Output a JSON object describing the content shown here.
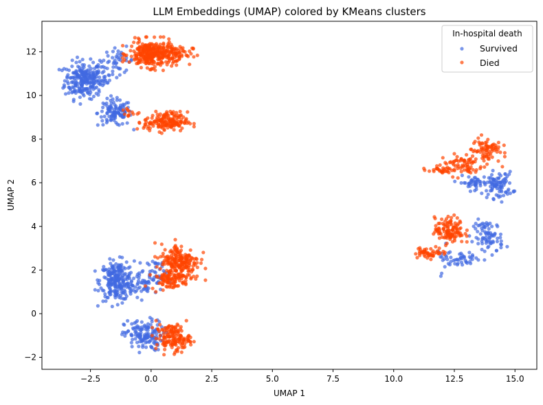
{
  "chart_data": {
    "type": "scatter",
    "title": "LLM Embeddings (UMAP) colored by KMeans clusters",
    "xlabel": "UMAP 1",
    "ylabel": "UMAP 2",
    "xlim": [
      -4.5,
      15.9
    ],
    "ylim": [
      -2.55,
      13.4
    ],
    "xticks": [
      -2.5,
      0.0,
      2.5,
      5.0,
      7.5,
      10.0,
      12.5,
      15.0
    ],
    "xtick_labels": [
      "−2.5",
      "0.0",
      "2.5",
      "5.0",
      "7.5",
      "10.0",
      "12.5",
      "15.0"
    ],
    "yticks": [
      -2,
      0,
      2,
      4,
      6,
      8,
      10,
      12
    ],
    "ytick_labels": [
      "−2",
      "0",
      "2",
      "4",
      "6",
      "8",
      "10",
      "12"
    ],
    "grid": false,
    "legend": {
      "title": "In-hospital death",
      "placement": "top-right"
    },
    "series": [
      {
        "name": "Survived",
        "color": "#4169E1",
        "clusters": [
          {
            "cx": -2.8,
            "cy": 10.7,
            "sx": 0.38,
            "sy": 0.42,
            "n": 230
          },
          {
            "cx": -2.0,
            "cy": 11.0,
            "sx": 0.25,
            "sy": 0.35,
            "n": 40
          },
          {
            "cx": -1.3,
            "cy": 11.6,
            "sx": 0.3,
            "sy": 0.3,
            "n": 35
          },
          {
            "cx": -1.5,
            "cy": 9.2,
            "sx": 0.35,
            "sy": 0.3,
            "n": 110
          },
          {
            "cx": -1.4,
            "cy": 1.5,
            "sx": 0.35,
            "sy": 0.45,
            "n": 240
          },
          {
            "cx": -0.3,
            "cy": 1.4,
            "sx": 0.45,
            "sy": 0.3,
            "n": 60
          },
          {
            "cx": 0.2,
            "cy": 2.0,
            "sx": 0.25,
            "sy": 0.3,
            "n": 30
          },
          {
            "cx": -0.3,
            "cy": -1.0,
            "sx": 0.4,
            "sy": 0.35,
            "n": 140
          },
          {
            "cx": 14.3,
            "cy": 5.9,
            "sx": 0.3,
            "sy": 0.3,
            "n": 90
          },
          {
            "cx": 13.3,
            "cy": 6.0,
            "sx": 0.3,
            "sy": 0.15,
            "n": 40
          },
          {
            "cx": 13.9,
            "cy": 3.5,
            "sx": 0.3,
            "sy": 0.4,
            "n": 80
          },
          {
            "cx": 12.9,
            "cy": 2.5,
            "sx": 0.3,
            "sy": 0.12,
            "n": 30
          },
          {
            "cx": 12.2,
            "cy": 2.5,
            "sx": 0.2,
            "sy": 0.3,
            "n": 20
          }
        ]
      },
      {
        "name": "Died",
        "color": "#FF4500",
        "clusters": [
          {
            "cx": 0.0,
            "cy": 11.9,
            "sx": 0.45,
            "sy": 0.3,
            "n": 300
          },
          {
            "cx": 1.0,
            "cy": 11.9,
            "sx": 0.35,
            "sy": 0.22,
            "n": 60
          },
          {
            "cx": 0.6,
            "cy": 8.8,
            "sx": 0.45,
            "sy": 0.22,
            "n": 170
          },
          {
            "cx": -1.0,
            "cy": 9.2,
            "sx": 0.15,
            "sy": 0.15,
            "n": 10
          },
          {
            "cx": 1.2,
            "cy": 2.4,
            "sx": 0.4,
            "sy": 0.4,
            "n": 200
          },
          {
            "cx": 0.8,
            "cy": 1.6,
            "sx": 0.4,
            "sy": 0.25,
            "n": 90
          },
          {
            "cx": 0.9,
            "cy": -1.1,
            "sx": 0.35,
            "sy": 0.3,
            "n": 150
          },
          {
            "cx": 13.8,
            "cy": 7.5,
            "sx": 0.3,
            "sy": 0.3,
            "n": 80
          },
          {
            "cx": 12.8,
            "cy": 6.8,
            "sx": 0.45,
            "sy": 0.25,
            "n": 70
          },
          {
            "cx": 11.8,
            "cy": 6.6,
            "sx": 0.3,
            "sy": 0.08,
            "n": 25
          },
          {
            "cx": 12.3,
            "cy": 3.8,
            "sx": 0.3,
            "sy": 0.3,
            "n": 120
          },
          {
            "cx": 11.5,
            "cy": 2.8,
            "sx": 0.35,
            "sy": 0.12,
            "n": 50
          }
        ]
      }
    ]
  }
}
